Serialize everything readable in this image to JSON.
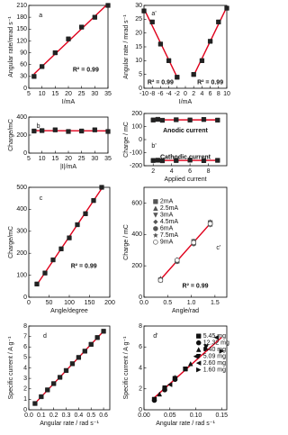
{
  "chart_data": [
    {
      "type": "scatter",
      "panel_label": "a",
      "xlabel": "I/mA",
      "ylabel": "Angular rate/mrad s⁻¹",
      "xlim": [
        5,
        35
      ],
      "xticks": [
        5,
        10,
        15,
        20,
        25,
        30,
        35
      ],
      "ylim": [
        0,
        210
      ],
      "yticks": [
        0,
        30,
        60,
        90,
        120,
        150,
        180,
        210
      ],
      "annotations": [
        "R² = 0.99"
      ],
      "fit": "each",
      "series": [
        {
          "color": "#222222",
          "marker": "square",
          "x": [
            7,
            10,
            15,
            20,
            25,
            30,
            35
          ],
          "values": [
            30,
            55,
            90,
            125,
            155,
            180,
            210
          ]
        }
      ]
    },
    {
      "type": "scatter",
      "panel_label": "a'",
      "xlabel": "I/mA",
      "ylabel": "Angular rate / mrad s⁻¹",
      "xlim": [
        -10,
        10
      ],
      "xticks": [
        -10,
        -8,
        -6,
        -4,
        -2,
        0,
        2,
        4,
        6,
        8,
        10
      ],
      "ylim": [
        0,
        30
      ],
      "yticks": [
        0,
        5,
        10,
        15,
        20,
        25,
        30
      ],
      "annotations": [
        "R² = 0.99",
        "R² = 0.99"
      ],
      "fit": "each",
      "series": [
        {
          "color": "#222222",
          "marker": "square",
          "x": [
            -10,
            -8,
            -6,
            -4,
            -2
          ],
          "values": [
            28,
            24,
            16,
            10,
            4
          ]
        },
        {
          "color": "#222222",
          "marker": "square",
          "x": [
            2,
            4,
            6,
            8,
            10
          ],
          "values": [
            5,
            10,
            17,
            24,
            29
          ]
        }
      ]
    },
    {
      "type": "scatter",
      "panel_label": "b",
      "xlabel": "|I|/mA",
      "ylabel": "Charge/mC",
      "xlim": [
        5,
        35
      ],
      "xticks": [
        5,
        10,
        15,
        20,
        25,
        30,
        35
      ],
      "ylim": [
        0,
        400
      ],
      "yticks": [
        0,
        200,
        400
      ],
      "annotations": [],
      "fit": "each",
      "series": [
        {
          "color": "#222222",
          "marker": "square",
          "x": [
            7,
            10,
            15,
            20,
            25,
            30,
            35
          ],
          "values": [
            245,
            250,
            258,
            240,
            245,
            258,
            240
          ]
        }
      ]
    },
    {
      "type": "scatter",
      "panel_label": "b'",
      "xlabel": "Applied current",
      "ylabel": "Charge / mC",
      "xlim": [
        1,
        10
      ],
      "xticks": [
        2,
        4,
        6,
        8
      ],
      "ylim": [
        -200,
        200
      ],
      "yticks": [
        -200,
        -100,
        0,
        100,
        200
      ],
      "annotations": [
        "Anodic current",
        "Cathodic current"
      ],
      "fit": "each",
      "series": [
        {
          "color": "#222222",
          "marker": "square",
          "x": [
            2,
            2.5,
            3,
            4.5,
            6,
            7.5,
            9
          ],
          "values": [
            150,
            155,
            148,
            152,
            150,
            154,
            149
          ]
        },
        {
          "color": "#222222",
          "marker": "square",
          "x": [
            2,
            2.5,
            3,
            4.5,
            6,
            7.5,
            9
          ],
          "values": [
            -160,
            -158,
            -162,
            -160,
            -157,
            -161,
            -159
          ]
        }
      ]
    },
    {
      "type": "scatter",
      "panel_label": "c",
      "xlabel": "Angle/degree",
      "ylabel": "Charge/mC",
      "xlim": [
        0,
        200
      ],
      "xticks": [
        0,
        50,
        100,
        150,
        200
      ],
      "ylim": [
        0,
        500
      ],
      "yticks": [
        0,
        100,
        200,
        300,
        400,
        500
      ],
      "annotations": [
        "R² = 0.99"
      ],
      "fit": "each",
      "series": [
        {
          "color": "#222222",
          "marker": "square",
          "x": [
            20,
            40,
            60,
            80,
            100,
            120,
            140,
            160,
            180
          ],
          "values": [
            60,
            110,
            170,
            220,
            270,
            330,
            380,
            440,
            500
          ]
        }
      ]
    },
    {
      "type": "scatter",
      "panel_label": "c'",
      "xlabel": "Angle/rad",
      "ylabel": "Charge / mC",
      "xlim": [
        0,
        1.75
      ],
      "xticks": [
        {
          "value": 0,
          "label": "0.0"
        },
        0.5,
        {
          "value": 1,
          "label": "1.0"
        },
        1.5
      ],
      "ylim": [
        0,
        700
      ],
      "yticks": [
        0,
        200,
        400,
        600
      ],
      "annotations": [
        "R² = 0.99"
      ],
      "fit": "all",
      "series": [
        {
          "name": "2mA",
          "color": "#555555",
          "marker": "square",
          "x": [
            0.35,
            0.7,
            1.05,
            1.4
          ],
          "values": [
            110,
            230,
            350,
            470
          ]
        },
        {
          "name": "2.5mA",
          "color": "#555555",
          "marker": "triangle",
          "x": [
            0.35,
            0.7,
            1.05,
            1.4
          ],
          "values": [
            120,
            235,
            345,
            465
          ]
        },
        {
          "name": "3mA",
          "color": "#555555",
          "marker": "triangle-down",
          "x": [
            0.35,
            0.7,
            1.05,
            1.4
          ],
          "values": [
            105,
            225,
            355,
            475
          ]
        },
        {
          "name": "4.5mA",
          "color": "#555555",
          "marker": "diamond",
          "x": [
            0.35,
            0.7,
            1.05,
            1.4
          ],
          "values": [
            115,
            240,
            350,
            460
          ]
        },
        {
          "name": "6mA",
          "color": "#555555",
          "marker": "circle",
          "x": [
            0.35,
            0.7,
            1.05,
            1.4
          ],
          "values": [
            112,
            228,
            340,
            470
          ]
        },
        {
          "name": "7.5mA",
          "color": "#555555",
          "marker": "star",
          "x": [
            0.35,
            0.7,
            1.05,
            1.4
          ],
          "values": [
            118,
            232,
            358,
            480
          ]
        },
        {
          "name": "9mA",
          "color": "#555555",
          "marker": "circle-open",
          "x": [
            0.35,
            0.7,
            1.05,
            1.4
          ],
          "values": [
            108,
            236,
            348,
            468
          ]
        }
      ]
    },
    {
      "type": "scatter",
      "panel_label": "d",
      "xlabel": "Angular rate / rad s⁻¹",
      "ylabel": "Specific current / A g⁻¹",
      "xlim": [
        0,
        0.65
      ],
      "xticks": [
        {
          "value": 0,
          "label": "0.0"
        },
        0.1,
        0.2,
        0.3,
        0.4,
        0.5,
        0.6
      ],
      "ylim": [
        0,
        8
      ],
      "yticks": [
        0,
        1,
        2,
        3,
        4,
        5,
        6,
        7,
        8
      ],
      "annotations": [],
      "fit": "each",
      "series": [
        {
          "color": "#222222",
          "marker": "square",
          "x": [
            0.05,
            0.1,
            0.15,
            0.2,
            0.25,
            0.3,
            0.35,
            0.4,
            0.45,
            0.5,
            0.55,
            0.6
          ],
          "values": [
            0.6,
            1.25,
            1.9,
            2.5,
            3.1,
            3.75,
            4.4,
            5,
            5.6,
            6.25,
            6.9,
            7.5
          ]
        }
      ]
    },
    {
      "type": "scatter",
      "panel_label": "d'",
      "xlabel": "Angular rate / rad s⁻¹",
      "ylabel": "Specific current / A g⁻¹",
      "xlim": [
        0,
        0.16
      ],
      "xticks": [
        {
          "value": 0,
          "label": "0.00"
        },
        0.05,
        {
          "value": 0.1,
          "label": "0.10"
        },
        0.15
      ],
      "ylim": [
        0,
        8
      ],
      "yticks": [
        0,
        2,
        4,
        6,
        8
      ],
      "annotations": [],
      "fit": "all",
      "series": [
        {
          "name": "5.45 mg",
          "color": "#111111",
          "marker": "square",
          "x": [
            0.02,
            0.04,
            0.06,
            0.08
          ],
          "values": [
            1.0,
            2.0,
            3.0,
            3.9
          ]
        },
        {
          "name": "12.32 mg",
          "color": "#111111",
          "marker": "circle",
          "x": [
            0.02,
            0.04,
            0.06
          ],
          "values": [
            0.9,
            1.9,
            2.9
          ]
        },
        {
          "name": "6.40 mg",
          "color": "#111111",
          "marker": "triangle",
          "x": [
            0.03,
            0.06,
            0.09
          ],
          "values": [
            1.5,
            3.1,
            4.4
          ]
        },
        {
          "name": "5.09 mg",
          "color": "#111111",
          "marker": "triangle-down",
          "x": [
            0.04,
            0.08,
            0.12
          ],
          "values": [
            2.1,
            3.9,
            6.0
          ]
        },
        {
          "name": "2.60 mg",
          "color": "#111111",
          "marker": "triangle-left",
          "x": [
            0.05,
            0.1,
            0.14
          ],
          "values": [
            2.4,
            5.1,
            6.9
          ]
        },
        {
          "name": "1.60 mg",
          "color": "#111111",
          "marker": "triangle-right",
          "x": [
            0.06,
            0.12,
            0.15
          ],
          "values": [
            3.0,
            5.8,
            5.6
          ]
        }
      ]
    }
  ]
}
